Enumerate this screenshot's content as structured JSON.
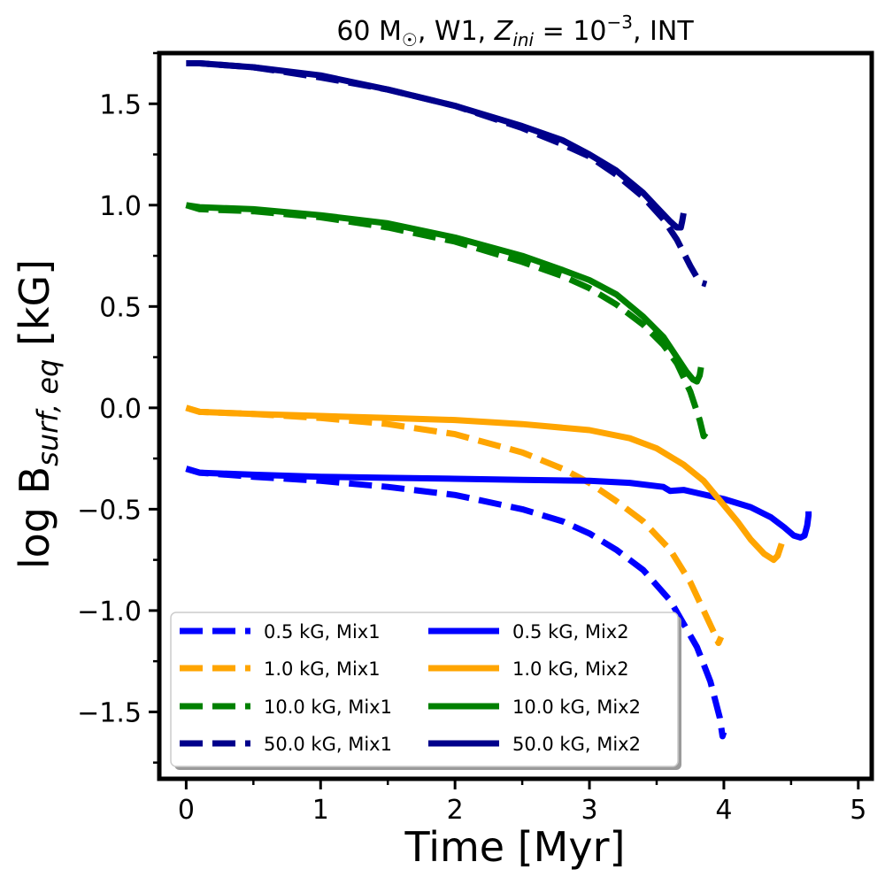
{
  "chart_data": {
    "type": "line",
    "title_parts": {
      "mass": "60 M",
      "sun_symbol": "☉",
      "after_mass": ", W1, ",
      "z_symbol": "Z",
      "z_subscript": "ini",
      "equals": " = 10",
      "exponent": "−3",
      "suffix": ", INT"
    },
    "xlabel": "Time [Myr]",
    "ylabel_parts": {
      "main": "log B",
      "subscript": "surf, eq",
      "unit": " [kG]"
    },
    "xlim": [
      -0.2,
      5.1
    ],
    "ylim": [
      -1.83,
      1.75
    ],
    "xticks": [
      0,
      1,
      2,
      3,
      4,
      5
    ],
    "xtick_labels": [
      "0",
      "1",
      "2",
      "3",
      "4",
      "5"
    ],
    "xticks_minor": [
      0.5,
      1.5,
      2.5,
      3.5,
      4.5
    ],
    "yticks": [
      -1.5,
      -1.0,
      -0.5,
      0.0,
      0.5,
      1.0,
      1.5
    ],
    "ytick_labels": [
      "−1.5",
      "−1.0",
      "−0.5",
      "0.0",
      "0.5",
      "1.0",
      "1.5"
    ],
    "yticks_minor": [
      -1.75,
      -1.25,
      -0.75,
      -0.25,
      0.25,
      0.75,
      1.25,
      1.75
    ],
    "grid": false,
    "legend": {
      "position": "lower-left",
      "columns": 2
    },
    "series": [
      {
        "name": "0.5 kG, Mix1",
        "color": "#0000ff",
        "dashed": true,
        "x": [
          0.0,
          0.1,
          0.5,
          1.0,
          1.5,
          2.0,
          2.5,
          2.8,
          3.0,
          3.2,
          3.4,
          3.6,
          3.8,
          3.9,
          3.97,
          3.99,
          4.0
        ],
        "y": [
          -0.3,
          -0.32,
          -0.34,
          -0.36,
          -0.39,
          -0.43,
          -0.5,
          -0.56,
          -0.62,
          -0.7,
          -0.8,
          -0.95,
          -1.18,
          -1.35,
          -1.53,
          -1.62,
          -1.6
        ]
      },
      {
        "name": "1.0 kG, Mix1",
        "color": "#ffa500",
        "dashed": true,
        "x": [
          0.0,
          0.1,
          0.5,
          1.0,
          1.5,
          2.0,
          2.5,
          2.8,
          3.0,
          3.2,
          3.4,
          3.6,
          3.75,
          3.85,
          3.92,
          3.96,
          3.98
        ],
        "y": [
          0.0,
          -0.02,
          -0.03,
          -0.05,
          -0.08,
          -0.13,
          -0.22,
          -0.3,
          -0.37,
          -0.46,
          -0.56,
          -0.7,
          -0.86,
          -1.0,
          -1.1,
          -1.16,
          -1.13
        ]
      },
      {
        "name": "10.0 kG, Mix1",
        "color": "#008000",
        "dashed": true,
        "x": [
          0.0,
          0.1,
          0.5,
          1.0,
          1.5,
          2.0,
          2.5,
          2.8,
          3.0,
          3.2,
          3.4,
          3.55,
          3.65,
          3.75,
          3.82,
          3.85,
          3.87
        ],
        "y": [
          1.0,
          0.98,
          0.97,
          0.94,
          0.89,
          0.82,
          0.72,
          0.65,
          0.59,
          0.51,
          0.41,
          0.31,
          0.22,
          0.08,
          -0.06,
          -0.14,
          -0.12
        ]
      },
      {
        "name": "50.0 kG, Mix1",
        "color": "#00008b",
        "dashed": true,
        "x": [
          0.0,
          0.1,
          0.5,
          1.0,
          1.5,
          2.0,
          2.5,
          2.8,
          3.0,
          3.2,
          3.4,
          3.55,
          3.65,
          3.75,
          3.82,
          3.87
        ],
        "y": [
          1.7,
          1.7,
          1.68,
          1.63,
          1.57,
          1.49,
          1.38,
          1.3,
          1.24,
          1.15,
          1.04,
          0.93,
          0.83,
          0.7,
          0.62,
          0.61
        ]
      },
      {
        "name": "0.5 kG, Mix2",
        "color": "#0000ff",
        "dashed": false,
        "x": [
          0.0,
          0.1,
          0.5,
          1.0,
          1.5,
          2.0,
          2.5,
          3.0,
          3.3,
          3.55,
          3.6,
          3.7,
          3.8,
          4.0,
          4.2,
          4.35,
          4.45,
          4.52,
          4.57,
          4.6,
          4.62,
          4.63,
          4.63
        ],
        "y": [
          -0.3,
          -0.32,
          -0.33,
          -0.34,
          -0.345,
          -0.35,
          -0.355,
          -0.36,
          -0.37,
          -0.39,
          -0.41,
          -0.405,
          -0.42,
          -0.45,
          -0.49,
          -0.54,
          -0.59,
          -0.63,
          -0.64,
          -0.63,
          -0.58,
          -0.53,
          -0.51
        ]
      },
      {
        "name": "1.0 kG, Mix2",
        "color": "#ffa500",
        "dashed": false,
        "x": [
          0.0,
          0.1,
          0.5,
          1.0,
          1.5,
          2.0,
          2.5,
          3.0,
          3.3,
          3.5,
          3.7,
          3.85,
          4.0,
          4.1,
          4.2,
          4.3,
          4.37,
          4.4,
          4.42,
          4.43
        ],
        "y": [
          0.0,
          -0.02,
          -0.03,
          -0.04,
          -0.05,
          -0.06,
          -0.08,
          -0.11,
          -0.15,
          -0.2,
          -0.28,
          -0.36,
          -0.48,
          -0.56,
          -0.65,
          -0.72,
          -0.75,
          -0.73,
          -0.69,
          -0.67
        ]
      },
      {
        "name": "10.0 kG, Mix2",
        "color": "#008000",
        "dashed": false,
        "x": [
          0.0,
          0.1,
          0.5,
          1.0,
          1.5,
          2.0,
          2.5,
          2.8,
          3.0,
          3.2,
          3.4,
          3.55,
          3.65,
          3.72,
          3.77,
          3.8,
          3.82,
          3.83
        ],
        "y": [
          1.0,
          0.99,
          0.98,
          0.95,
          0.91,
          0.84,
          0.75,
          0.68,
          0.63,
          0.56,
          0.45,
          0.35,
          0.25,
          0.18,
          0.14,
          0.13,
          0.16,
          0.2
        ]
      },
      {
        "name": "50.0 kG, Mix2",
        "color": "#00008b",
        "dashed": false,
        "x": [
          0.0,
          0.1,
          0.5,
          1.0,
          1.5,
          2.0,
          2.5,
          2.8,
          3.0,
          3.2,
          3.4,
          3.5,
          3.6,
          3.65,
          3.68,
          3.69,
          3.7
        ],
        "y": [
          1.7,
          1.7,
          1.68,
          1.64,
          1.57,
          1.49,
          1.39,
          1.32,
          1.25,
          1.17,
          1.06,
          0.99,
          0.92,
          0.89,
          0.89,
          0.92,
          0.96
        ]
      }
    ]
  }
}
